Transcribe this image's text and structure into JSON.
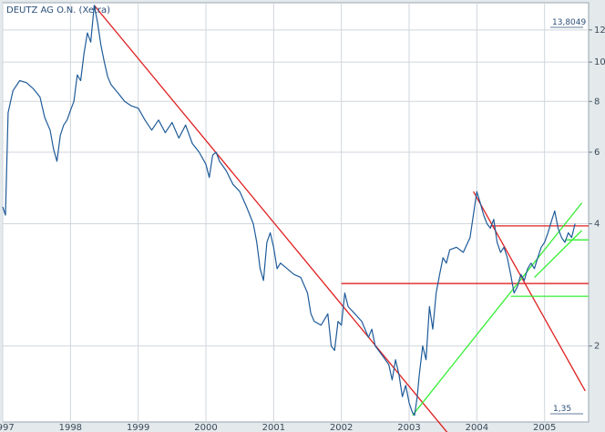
{
  "chart_data": {
    "type": "line",
    "title": "DEUTZ AG O.N. (Xetra)",
    "y_scale": "log",
    "ylim": [
      1.3,
      14
    ],
    "xlim": [
      1997.0,
      2005.65
    ],
    "x_ticks": [
      1997,
      1998,
      1999,
      2000,
      2001,
      2002,
      2003,
      2004,
      2005
    ],
    "x_tick_labels": [
      "1997",
      "1998",
      "1999",
      "2000",
      "2001",
      "2002",
      "2003",
      "2004",
      "2005"
    ],
    "y_ticks": [
      2,
      4,
      6,
      8,
      10,
      12
    ],
    "y_tick_labels": [
      "2",
      "4",
      "6",
      "8",
      "10",
      "12"
    ],
    "max_label": "13,8049",
    "min_label": "1,35",
    "grid": true,
    "colors": {
      "price": "#1f5b99",
      "red_lines": "#e02020",
      "green_lines": "#33ee33",
      "background": "#ffffff",
      "frame": "#e4e9ec"
    },
    "series": [
      {
        "values": [
          [
            1997.0,
            4.4
          ],
          [
            1997.04,
            4.2
          ],
          [
            1997.08,
            7.5
          ],
          [
            1997.15,
            8.5
          ],
          [
            1997.25,
            9.0
          ],
          [
            1997.35,
            8.9
          ],
          [
            1997.45,
            8.6
          ],
          [
            1997.55,
            8.2
          ],
          [
            1997.62,
            7.3
          ],
          [
            1997.7,
            6.8
          ],
          [
            1997.75,
            6.1
          ],
          [
            1997.8,
            5.7
          ],
          [
            1997.85,
            6.6
          ],
          [
            1997.9,
            7.0
          ],
          [
            1997.95,
            7.2
          ],
          [
            1998.0,
            7.6
          ],
          [
            1998.05,
            8.0
          ],
          [
            1998.1,
            9.3
          ],
          [
            1998.15,
            9.0
          ],
          [
            1998.2,
            10.5
          ],
          [
            1998.25,
            11.8
          ],
          [
            1998.3,
            11.2
          ],
          [
            1998.35,
            13.8
          ],
          [
            1998.4,
            12.5
          ],
          [
            1998.45,
            11.0
          ],
          [
            1998.5,
            10.0
          ],
          [
            1998.55,
            9.2
          ],
          [
            1998.6,
            8.8
          ],
          [
            1998.7,
            8.4
          ],
          [
            1998.8,
            8.0
          ],
          [
            1998.9,
            7.8
          ],
          [
            1999.0,
            7.7
          ],
          [
            1999.1,
            7.2
          ],
          [
            1999.2,
            6.8
          ],
          [
            1999.3,
            7.2
          ],
          [
            1999.4,
            6.7
          ],
          [
            1999.5,
            7.1
          ],
          [
            1999.6,
            6.5
          ],
          [
            1999.7,
            7.0
          ],
          [
            1999.8,
            6.3
          ],
          [
            1999.9,
            6.0
          ],
          [
            2000.0,
            5.6
          ],
          [
            2000.05,
            5.2
          ],
          [
            2000.1,
            5.9
          ],
          [
            2000.15,
            6.0
          ],
          [
            2000.2,
            5.7
          ],
          [
            2000.3,
            5.4
          ],
          [
            2000.4,
            5.0
          ],
          [
            2000.5,
            4.8
          ],
          [
            2000.6,
            4.4
          ],
          [
            2000.7,
            4.0
          ],
          [
            2000.75,
            3.6
          ],
          [
            2000.8,
            3.1
          ],
          [
            2000.85,
            2.9
          ],
          [
            2000.9,
            3.6
          ],
          [
            2000.95,
            3.8
          ],
          [
            2001.0,
            3.5
          ],
          [
            2001.05,
            3.1
          ],
          [
            2001.1,
            3.2
          ],
          [
            2001.2,
            3.1
          ],
          [
            2001.3,
            3.0
          ],
          [
            2001.4,
            2.95
          ],
          [
            2001.5,
            2.7
          ],
          [
            2001.55,
            2.4
          ],
          [
            2001.6,
            2.3
          ],
          [
            2001.7,
            2.25
          ],
          [
            2001.8,
            2.4
          ],
          [
            2001.85,
            2.0
          ],
          [
            2001.9,
            1.95
          ],
          [
            2001.95,
            2.3
          ],
          [
            2002.0,
            2.25
          ],
          [
            2002.05,
            2.7
          ],
          [
            2002.1,
            2.5
          ],
          [
            2002.2,
            2.4
          ],
          [
            2002.3,
            2.3
          ],
          [
            2002.4,
            2.1
          ],
          [
            2002.45,
            2.2
          ],
          [
            2002.5,
            2.0
          ],
          [
            2002.6,
            1.9
          ],
          [
            2002.7,
            1.8
          ],
          [
            2002.75,
            1.65
          ],
          [
            2002.8,
            1.85
          ],
          [
            2002.85,
            1.7
          ],
          [
            2002.9,
            1.5
          ],
          [
            2002.95,
            1.6
          ],
          [
            2003.0,
            1.45
          ],
          [
            2003.05,
            1.37
          ],
          [
            2003.08,
            1.35
          ],
          [
            2003.12,
            1.5
          ],
          [
            2003.15,
            1.7
          ],
          [
            2003.2,
            2.0
          ],
          [
            2003.25,
            1.85
          ],
          [
            2003.3,
            2.5
          ],
          [
            2003.35,
            2.2
          ],
          [
            2003.4,
            2.7
          ],
          [
            2003.45,
            3.0
          ],
          [
            2003.5,
            3.3
          ],
          [
            2003.55,
            3.2
          ],
          [
            2003.6,
            3.45
          ],
          [
            2003.7,
            3.5
          ],
          [
            2003.8,
            3.4
          ],
          [
            2003.9,
            3.7
          ],
          [
            2004.0,
            4.8
          ],
          [
            2004.05,
            4.5
          ],
          [
            2004.1,
            4.2
          ],
          [
            2004.15,
            4.0
          ],
          [
            2004.2,
            3.9
          ],
          [
            2004.25,
            4.1
          ],
          [
            2004.3,
            3.6
          ],
          [
            2004.35,
            3.4
          ],
          [
            2004.4,
            3.5
          ],
          [
            2004.45,
            3.3
          ],
          [
            2004.5,
            3.0
          ],
          [
            2004.55,
            2.7
          ],
          [
            2004.6,
            2.8
          ],
          [
            2004.65,
            3.0
          ],
          [
            2004.7,
            2.9
          ],
          [
            2004.75,
            3.1
          ],
          [
            2004.8,
            3.2
          ],
          [
            2004.85,
            3.1
          ],
          [
            2004.9,
            3.3
          ],
          [
            2004.95,
            3.5
          ],
          [
            2005.0,
            3.6
          ],
          [
            2005.05,
            3.8
          ],
          [
            2005.1,
            4.05
          ],
          [
            2005.15,
            4.3
          ],
          [
            2005.2,
            3.9
          ],
          [
            2005.25,
            3.7
          ],
          [
            2005.3,
            3.6
          ],
          [
            2005.35,
            3.8
          ],
          [
            2005.4,
            3.7
          ],
          [
            2005.45,
            4.0
          ]
        ]
      }
    ],
    "lines": [
      {
        "color": "red",
        "x": [
          1998.35,
          2004.0
        ],
        "y": [
          13.8,
          1.0
        ]
      },
      {
        "color": "red",
        "x": [
          2003.95,
          2005.6
        ],
        "y": [
          4.8,
          1.55
        ]
      },
      {
        "color": "red",
        "x": [
          2002.0,
          2005.65
        ],
        "y": [
          2.85,
          2.85
        ]
      },
      {
        "color": "red",
        "x": [
          2004.2,
          2005.65
        ],
        "y": [
          3.95,
          3.95
        ]
      },
      {
        "color": "green",
        "x": [
          2003.05,
          2005.55
        ],
        "y": [
          1.35,
          4.5
        ]
      },
      {
        "color": "green",
        "x": [
          2004.85,
          2005.55
        ],
        "y": [
          2.95,
          3.85
        ]
      },
      {
        "color": "green",
        "x": [
          2004.5,
          2005.65
        ],
        "y": [
          2.65,
          2.65
        ]
      },
      {
        "color": "green",
        "x": [
          2005.3,
          2005.65
        ],
        "y": [
          3.65,
          3.65
        ]
      }
    ]
  }
}
